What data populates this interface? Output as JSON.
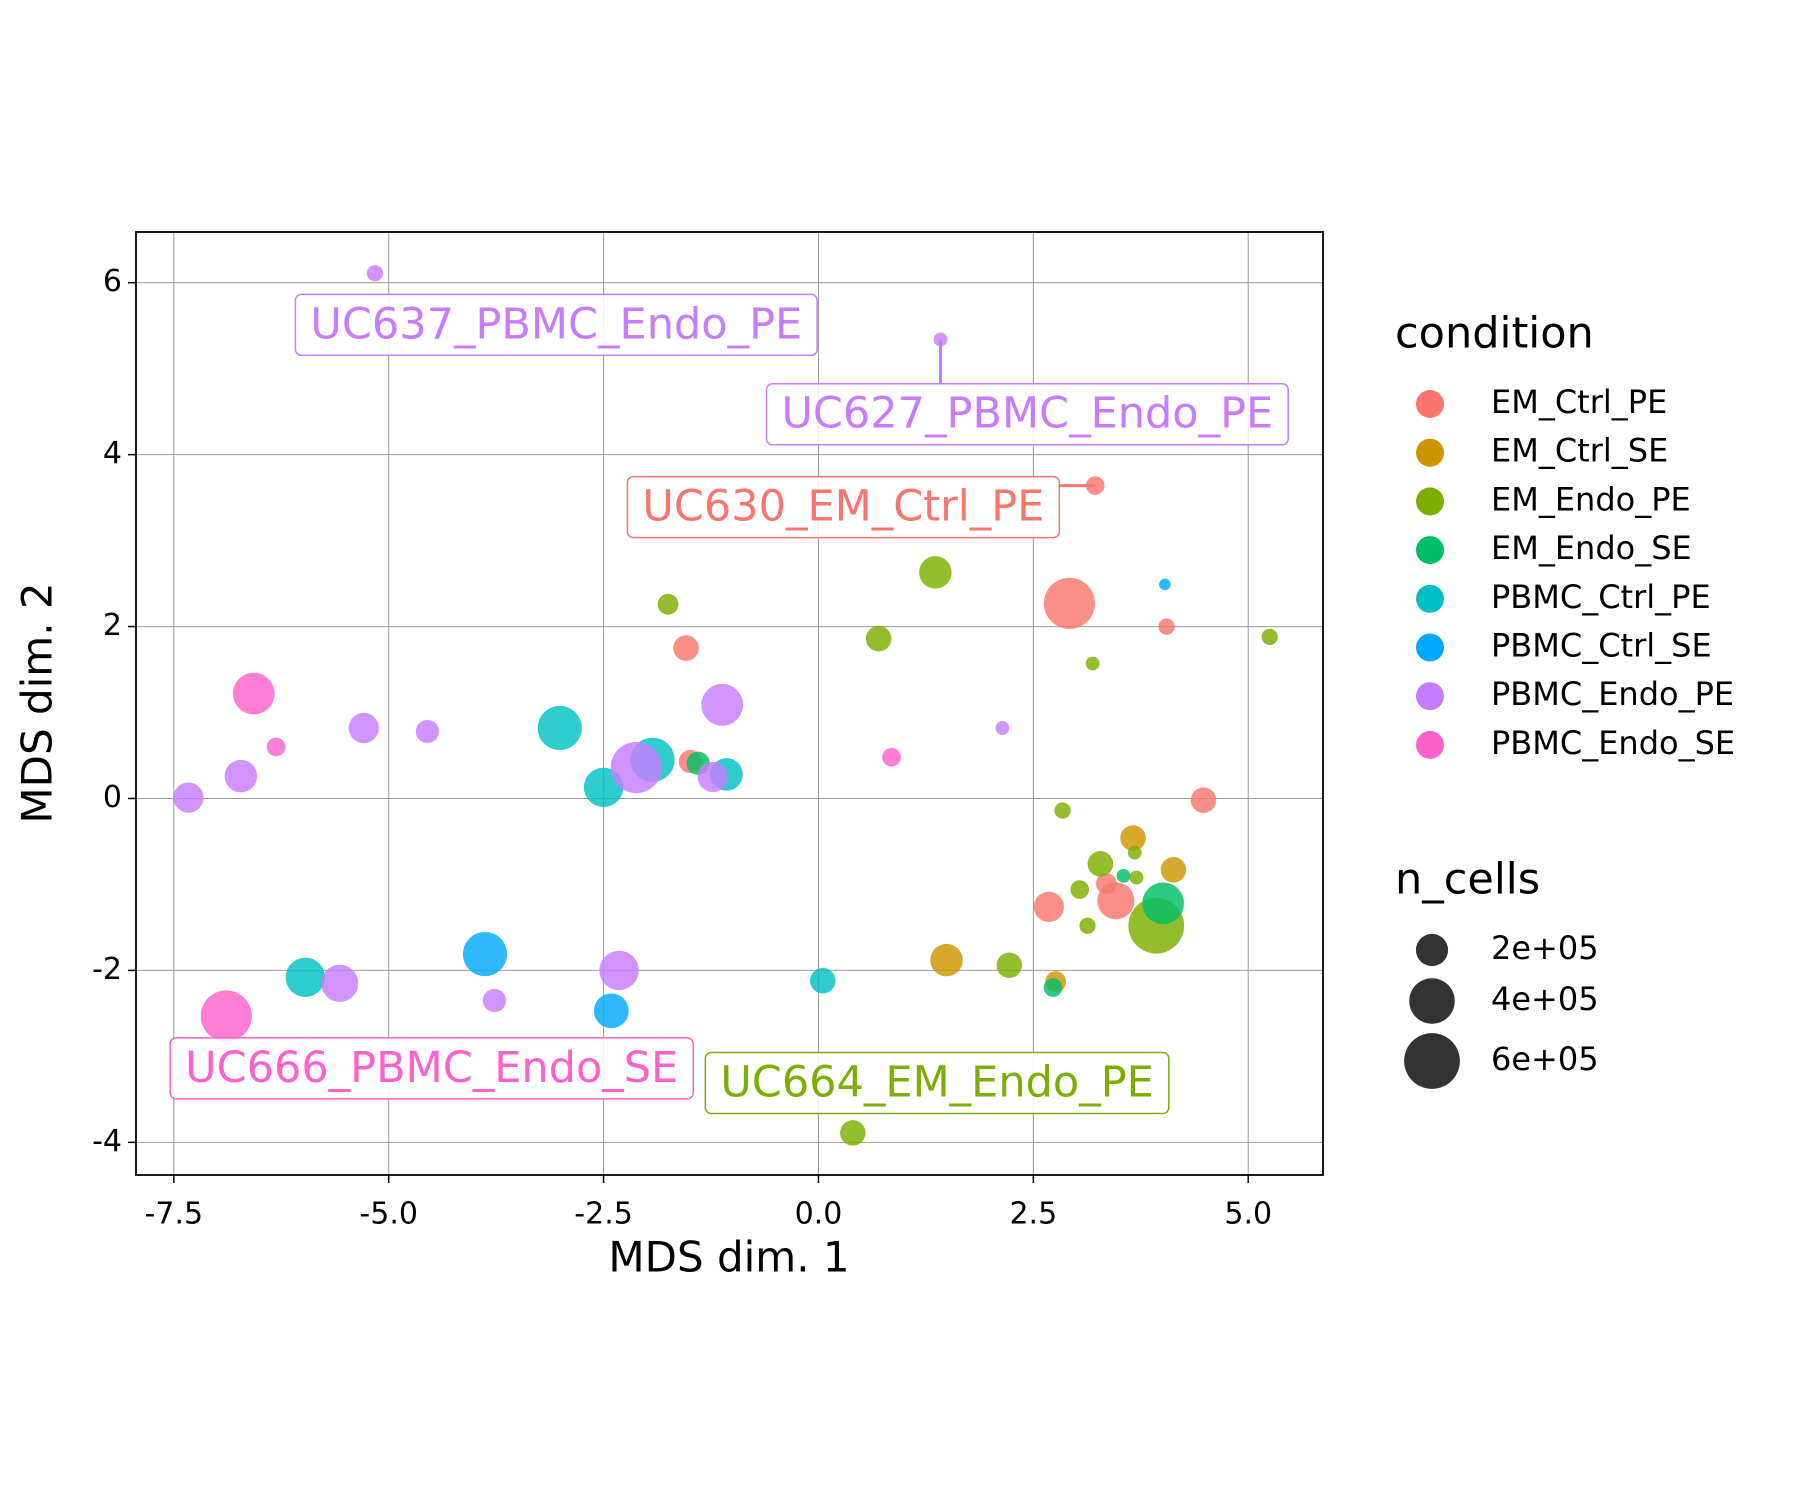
{
  "chart_data": {
    "type": "scatter",
    "xlabel": "MDS dim. 1",
    "ylabel": "MDS dim. 2",
    "xlim": [
      -7.94,
      5.87
    ],
    "ylim": [
      -4.38,
      6.59
    ],
    "xticks": [
      -7.5,
      {
        "value": -5.0,
        "label": "-5.0"
      },
      -2.5,
      {
        "value": 0,
        "label": "0.0"
      },
      2.5,
      {
        "value": 5,
        "label": "5.0"
      }
    ],
    "yticks": [
      -4,
      -2,
      0,
      2,
      4,
      6
    ],
    "grid": true,
    "legend_title": "condition",
    "size_legend": {
      "title": "n_cells",
      "values": [
        {
          "value": 200000,
          "label": "2e+05"
        },
        {
          "value": 400000,
          "label": "4e+05"
        },
        {
          "value": 600000,
          "label": "6e+05"
        }
      ]
    },
    "series": [
      {
        "name": "EM_Ctrl_PE",
        "color": "#F8766D",
        "x": [
          3.22,
          2.92,
          4.05,
          -1.54,
          -1.49,
          4.48,
          3.35,
          2.68,
          3.46
        ],
        "y": [
          3.64,
          2.27,
          2.0,
          1.75,
          0.43,
          -0.02,
          -0.99,
          -1.26,
          -1.19
        ],
        "size": [
          67000,
          504000,
          51000,
          126000,
          104000,
          126000,
          84000,
          176000,
          266000
        ]
      },
      {
        "name": "EM_Ctrl_SE",
        "color": "#CD9600",
        "x": [
          3.66,
          4.13,
          1.49,
          2.76
        ],
        "y": [
          -0.46,
          -0.83,
          -1.88,
          -2.13
        ],
        "size": [
          126000,
          126000,
          204000,
          84000
        ]
      },
      {
        "name": "EM_Endo_PE",
        "color": "#7CAE00",
        "x": [
          -1.75,
          1.36,
          0.7,
          3.19,
          5.25,
          2.84,
          3.28,
          3.68,
          3.7,
          3.04,
          3.13,
          3.93,
          2.22,
          0.4
        ],
        "y": [
          2.26,
          2.63,
          1.86,
          1.57,
          1.88,
          -0.14,
          -0.76,
          -0.63,
          -0.92,
          -1.06,
          -1.48,
          -1.48,
          -1.94,
          -3.89
        ],
        "size": [
          84000,
          204000,
          126000,
          37000,
          51000,
          51000,
          126000,
          37000,
          37000,
          67000,
          51000,
          600000,
          126000,
          126000
        ]
      },
      {
        "name": "EM_Endo_SE",
        "color": "#00BE67",
        "x": [
          -1.4,
          3.55,
          2.73,
          4.01
        ],
        "y": [
          0.41,
          -0.9,
          -2.2,
          -1.22
        ],
        "size": [
          104000,
          37000,
          67000,
          337000
        ]
      },
      {
        "name": "PBMC_Ctrl_PE",
        "color": "#00BFC4",
        "x": [
          -3.01,
          -2.5,
          -1.93,
          -1.07,
          -5.97,
          0.05
        ],
        "y": [
          0.82,
          0.13,
          0.45,
          0.28,
          -2.08,
          -2.12
        ],
        "size": [
          376000,
          300000,
          376000,
          204000,
          300000,
          126000
        ]
      },
      {
        "name": "PBMC_Ctrl_SE",
        "color": "#00A9FF",
        "x": [
          4.03,
          -3.88,
          -2.41
        ],
        "y": [
          2.49,
          -1.81,
          -2.47
        ],
        "size": [
          26000,
          376000,
          234000
        ]
      },
      {
        "name": "PBMC_Endo_PE",
        "color": "#C77CFF",
        "x": [
          -5.16,
          1.42,
          2.14,
          -1.12,
          -2.12,
          -1.23,
          -5.29,
          -4.55,
          -6.72,
          -7.33,
          -5.57,
          -3.77,
          -2.32
        ],
        "y": [
          6.11,
          5.34,
          0.82,
          1.09,
          0.36,
          0.25,
          0.82,
          0.78,
          0.26,
          0.01,
          -2.15,
          -2.35,
          -2.0
        ],
        "size": [
          51000,
          37000,
          37000,
          337000,
          504000,
          176000,
          176000,
          104000,
          204000,
          176000,
          266000,
          104000,
          300000
        ]
      },
      {
        "name": "PBMC_Endo_SE",
        "color": "#FF61CC",
        "x": [
          -6.57,
          -6.31,
          0.85,
          -6.89
        ],
        "y": [
          1.22,
          0.6,
          0.48,
          -2.53
        ],
        "size": [
          337000,
          67000,
          67000,
          504000
        ]
      }
    ],
    "annotations": [
      {
        "text": "UC637_PBMC_Endo_PE",
        "x": -3.05,
        "y": 5.51,
        "color": "#C77CFF"
      },
      {
        "text": "UC627_PBMC_Endo_PE",
        "x": 2.43,
        "y": 4.47,
        "color": "#C77CFF"
      },
      {
        "text": "UC630_EM_Ctrl_PE",
        "x": 0.29,
        "y": 3.39,
        "color": "#F8766D"
      },
      {
        "text": "UC666_PBMC_Endo_SE",
        "x": -4.5,
        "y": -3.14,
        "color": "#FF61CC"
      },
      {
        "text": "UC664_EM_Endo_PE",
        "x": 1.38,
        "y": -3.31,
        "color": "#7CAE00"
      }
    ]
  }
}
